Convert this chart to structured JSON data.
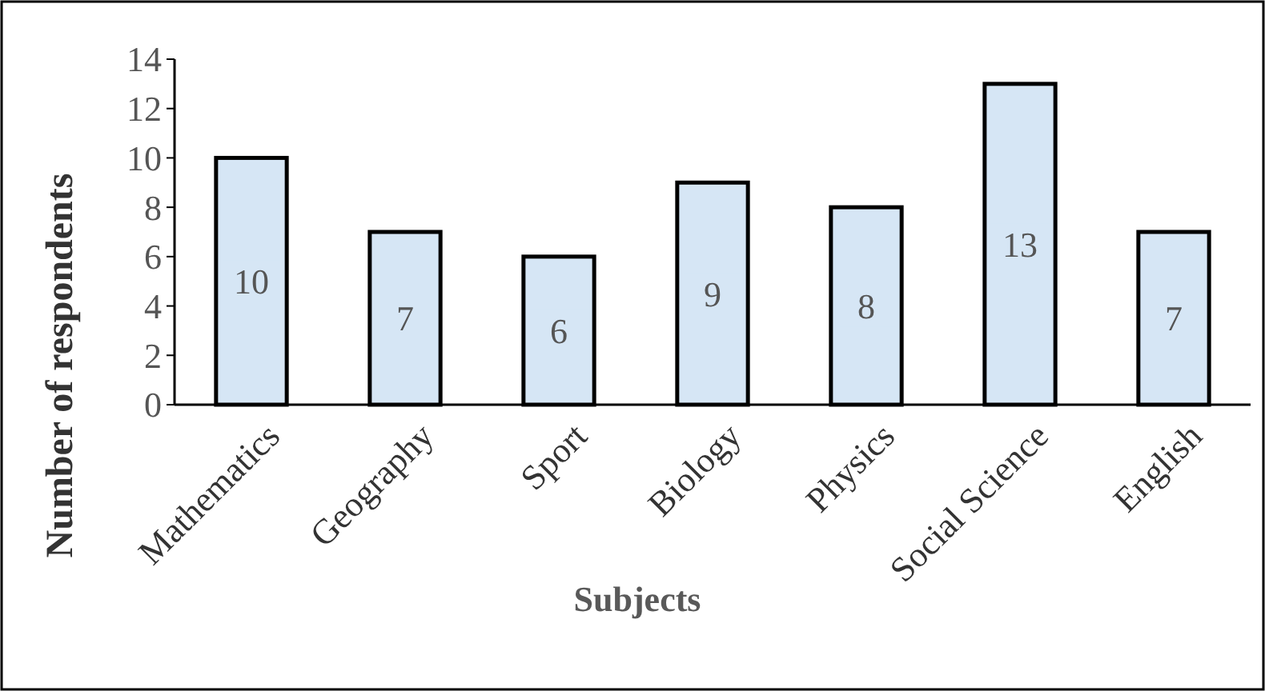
{
  "chart_data": {
    "type": "bar",
    "xlabel": "Subjects",
    "ylabel": "Number of respondents",
    "categories": [
      "Mathematics",
      "Geography",
      "Sport",
      "Biology",
      "Physics",
      "Social Science",
      "English"
    ],
    "values": [
      10,
      7,
      6,
      9,
      8,
      13,
      7
    ],
    "color": "#d6e6f5",
    "ylim": [
      0,
      14
    ],
    "yticks": [
      0,
      2,
      4,
      6,
      8,
      10,
      12,
      14
    ],
    "data_labels": true,
    "grid": false
  }
}
